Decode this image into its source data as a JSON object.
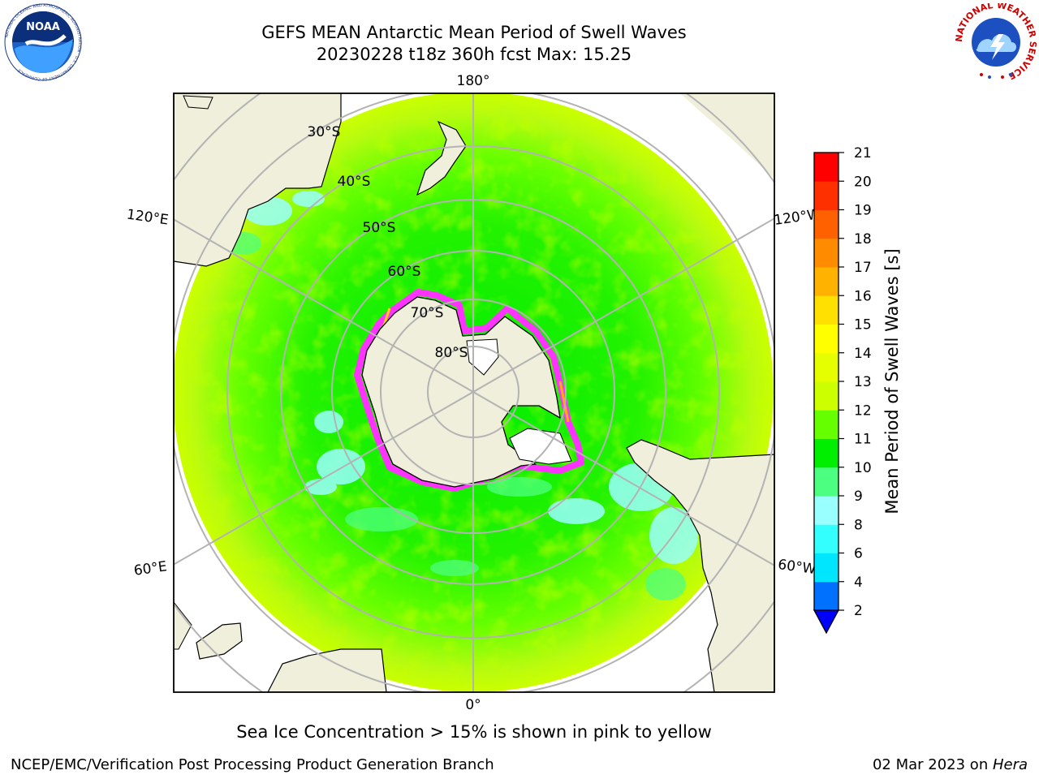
{
  "title_line1": "GEFS MEAN Antarctic Mean Period of Swell Waves",
  "title_line2": "20230228 t18z 360h fcst   Max: 15.25",
  "meridian_labels": {
    "top": "180°",
    "bottom": "0°",
    "upper_left": "120°E",
    "upper_right": "120°W",
    "lower_left": "60°E",
    "lower_right": "60°W"
  },
  "latitude_labels": [
    "30°S",
    "40°S",
    "50°S",
    "60°S",
    "70°S",
    "80°S"
  ],
  "colorbar": {
    "label": "Mean Period of Swell Waves [s]",
    "ticks": [
      "2",
      "4",
      "6",
      "8",
      "9",
      "10",
      "11",
      "12",
      "13",
      "14",
      "15",
      "16",
      "17",
      "18",
      "19",
      "20",
      "21"
    ],
    "colors": [
      "#0070ff",
      "#00e6ff",
      "#33ffff",
      "#99ffff",
      "#4dff80",
      "#00ee00",
      "#66ff00",
      "#ccff00",
      "#e6ff00",
      "#ffff00",
      "#ffe000",
      "#ffb300",
      "#ff8c00",
      "#ff6000",
      "#ff3000",
      "#ff0000"
    ],
    "under_color": "#0000ff"
  },
  "colors": {
    "land": "#efefdc",
    "ocean_main": "#00ee00",
    "ocean_mid": "#66ff00",
    "ocean_outer": "#ccff00",
    "swell_low": "#99ffff",
    "sea_ice": "#ff33ff",
    "grid": "#b3b3b3"
  },
  "footer_note": "Sea Ice Concentration > 15% is shown in pink to yellow",
  "footer_left": "NCEP/EMC/Verification Post Processing Product Generation Branch",
  "footer_right_date": "02 Mar 2023 on ",
  "footer_right_host": "Hera",
  "logos": {
    "noaa_text": "NOAA",
    "noaa_ring": "NATIONAL OCEANIC AND ATMOSPHERIC ADMINISTRATION · U.S. DEPARTMENT OF COMMERCE",
    "nws_ring": "NATIONAL WEATHER SERVICE"
  }
}
